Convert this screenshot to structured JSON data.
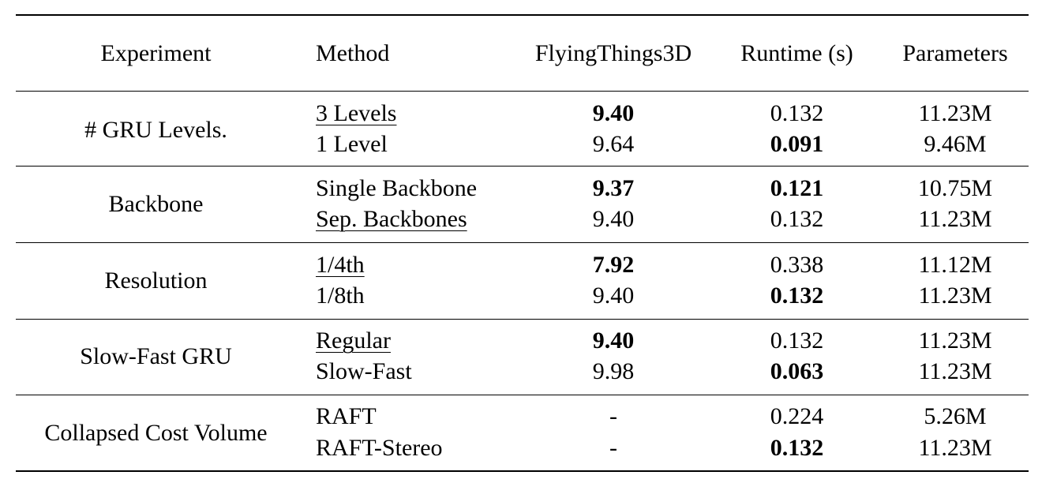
{
  "table": {
    "headers": {
      "experiment": "Experiment",
      "method": "Method",
      "flyingthings": "FlyingThings3D",
      "runtime": "Runtime (s)",
      "parameters": "Parameters"
    },
    "groups": [
      {
        "experiment": "# GRU Levels.",
        "rows": [
          {
            "method": "3 Levels",
            "method_underlined": true,
            "flyingthings": "9.40",
            "flyingthings_bold": true,
            "runtime": "0.132",
            "runtime_bold": false,
            "parameters": "11.23M"
          },
          {
            "method": "1 Level",
            "method_underlined": false,
            "flyingthings": "9.64",
            "flyingthings_bold": false,
            "runtime": "0.091",
            "runtime_bold": true,
            "parameters": "9.46M"
          }
        ]
      },
      {
        "experiment": "Backbone",
        "rows": [
          {
            "method": "Single Backbone",
            "method_underlined": false,
            "flyingthings": "9.37",
            "flyingthings_bold": true,
            "runtime": "0.121",
            "runtime_bold": true,
            "parameters": "10.75M"
          },
          {
            "method": "Sep. Backbones",
            "method_underlined": true,
            "flyingthings": "9.40",
            "flyingthings_bold": false,
            "runtime": "0.132",
            "runtime_bold": false,
            "parameters": "11.23M"
          }
        ]
      },
      {
        "experiment": "Resolution",
        "rows": [
          {
            "method": "1/4th",
            "method_underlined": true,
            "flyingthings": "7.92",
            "flyingthings_bold": true,
            "runtime": "0.338",
            "runtime_bold": false,
            "parameters": "11.12M"
          },
          {
            "method": "1/8th",
            "method_underlined": false,
            "flyingthings": "9.40",
            "flyingthings_bold": false,
            "runtime": "0.132",
            "runtime_bold": true,
            "parameters": "11.23M"
          }
        ]
      },
      {
        "experiment": "Slow-Fast GRU",
        "rows": [
          {
            "method": "Regular",
            "method_underlined": true,
            "flyingthings": "9.40",
            "flyingthings_bold": true,
            "runtime": "0.132",
            "runtime_bold": false,
            "parameters": "11.23M"
          },
          {
            "method": "Slow-Fast",
            "method_underlined": false,
            "flyingthings": "9.98",
            "flyingthings_bold": false,
            "runtime": "0.063",
            "runtime_bold": true,
            "parameters": "11.23M"
          }
        ]
      },
      {
        "experiment": "Collapsed Cost Volume",
        "rows": [
          {
            "method": "RAFT",
            "method_underlined": false,
            "flyingthings": "-",
            "flyingthings_bold": false,
            "runtime": "0.224",
            "runtime_bold": false,
            "parameters": "5.26M"
          },
          {
            "method": "RAFT-Stereo",
            "method_underlined": false,
            "flyingthings": "-",
            "flyingthings_bold": false,
            "runtime": "0.132",
            "runtime_bold": true,
            "parameters": "11.23M"
          }
        ]
      }
    ]
  }
}
